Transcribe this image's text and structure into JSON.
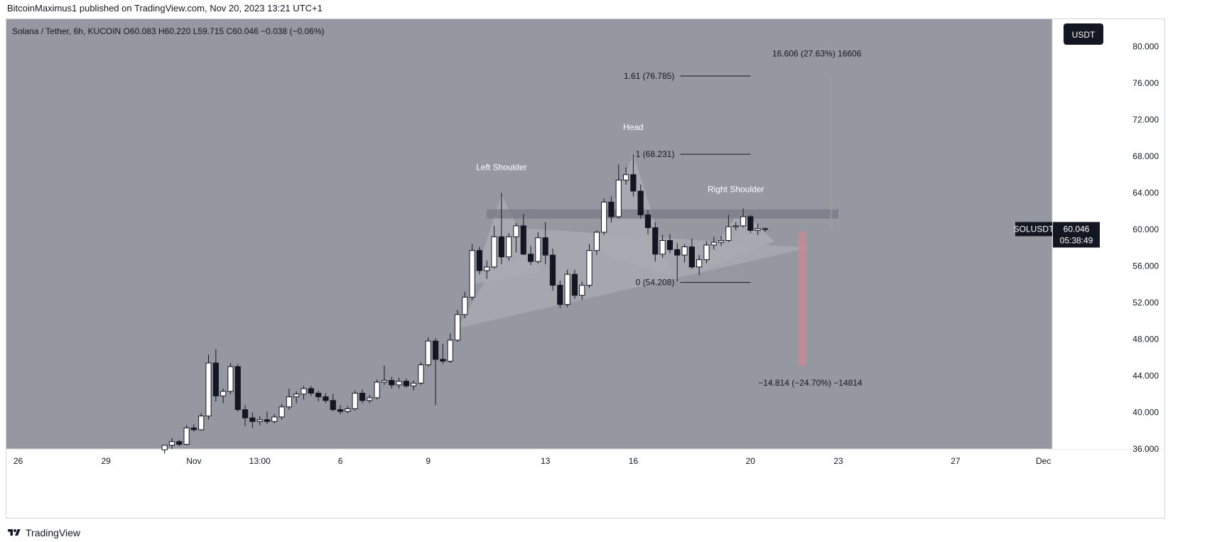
{
  "header": {
    "publisher": "BitcoinMaximus1 published on TradingView.com, Nov 20, 2023 13:21 UTC+1"
  },
  "footer": {
    "brand": "TradingView",
    "logo_icon": "tradingview-logo-icon"
  },
  "colors": {
    "plot_bg": "#9598a1",
    "up_candle": "#ffffff",
    "down_candle": "#131722",
    "wick": "#131722",
    "level_line": "#131722",
    "resistance_band": "#787b86",
    "pattern_fill": "#a9abb3",
    "target_down": "#c48a92",
    "target_up": "#9aa69a",
    "badge_bg": "#131722",
    "badge_text": "#ffffff"
  },
  "chart_data": {
    "type": "candlestick",
    "symbol_line": {
      "name": "Solana / Tether, 6h, KUCOIN",
      "open_label": "O",
      "open": "60.083",
      "high_label": "H",
      "high": "60.220",
      "low_label": "L",
      "low": "59.715",
      "close_label": "C",
      "close": "60.046",
      "change": "−0.038 (−0.06%)"
    },
    "currency_button": "USDT",
    "ylim": [
      36,
      83
    ],
    "y_ticks": [
      "80.000",
      "76.000",
      "72.000",
      "68.000",
      "64.000",
      "60.000",
      "56.000",
      "52.000",
      "48.000",
      "44.000",
      "40.000",
      "36.000"
    ],
    "x_ticks": [
      {
        "label": "26",
        "t": -3
      },
      {
        "label": "29",
        "t": 0
      },
      {
        "label": "Nov",
        "t": 3
      },
      {
        "label": "13:00",
        "t": 5.25
      },
      {
        "label": "6",
        "t": 8
      },
      {
        "label": "9",
        "t": 11
      },
      {
        "label": "13",
        "t": 15
      },
      {
        "label": "16",
        "t": 18
      },
      {
        "label": "20",
        "t": 22
      },
      {
        "label": "23",
        "t": 25
      },
      {
        "label": "27",
        "t": 29
      },
      {
        "label": "Dec",
        "t": 32
      }
    ],
    "x_unit": "days since Oct 29",
    "xlim": [
      -3.4,
      32.3
    ],
    "current_price": {
      "symbol": "SOLUSDT",
      "value": "60.046",
      "countdown": "05:38:49"
    },
    "candles": [
      {
        "t": 2.0,
        "o": 35.9,
        "h": 36.4,
        "l": 35.5,
        "c": 36.4
      },
      {
        "t": 2.25,
        "o": 36.4,
        "h": 37.2,
        "l": 36.0,
        "c": 36.8
      },
      {
        "t": 2.5,
        "o": 36.8,
        "h": 37.0,
        "l": 36.3,
        "c": 36.5
      },
      {
        "t": 2.75,
        "o": 36.5,
        "h": 38.6,
        "l": 36.4,
        "c": 38.3
      },
      {
        "t": 3.0,
        "o": 38.3,
        "h": 38.7,
        "l": 37.9,
        "c": 38.1
      },
      {
        "t": 3.25,
        "o": 38.1,
        "h": 39.9,
        "l": 38.0,
        "c": 39.6
      },
      {
        "t": 3.5,
        "o": 39.6,
        "h": 46.3,
        "l": 39.2,
        "c": 45.4
      },
      {
        "t": 3.75,
        "o": 45.4,
        "h": 46.9,
        "l": 41.2,
        "c": 41.8
      },
      {
        "t": 4.0,
        "o": 41.8,
        "h": 42.6,
        "l": 41.0,
        "c": 42.3
      },
      {
        "t": 4.25,
        "o": 42.3,
        "h": 45.4,
        "l": 42.0,
        "c": 45.0
      },
      {
        "t": 4.5,
        "o": 45.0,
        "h": 45.3,
        "l": 40.1,
        "c": 40.3
      },
      {
        "t": 4.75,
        "o": 40.3,
        "h": 40.8,
        "l": 38.5,
        "c": 39.4
      },
      {
        "t": 5.0,
        "o": 39.4,
        "h": 40.0,
        "l": 38.3,
        "c": 39.0
      },
      {
        "t": 5.25,
        "o": 39.0,
        "h": 39.6,
        "l": 38.6,
        "c": 39.2
      },
      {
        "t": 5.5,
        "o": 39.2,
        "h": 40.1,
        "l": 38.7,
        "c": 39.0
      },
      {
        "t": 5.75,
        "o": 39.0,
        "h": 39.8,
        "l": 38.8,
        "c": 39.5
      },
      {
        "t": 6.0,
        "o": 39.5,
        "h": 40.9,
        "l": 39.2,
        "c": 40.6
      },
      {
        "t": 6.25,
        "o": 40.6,
        "h": 42.6,
        "l": 40.3,
        "c": 41.7
      },
      {
        "t": 6.5,
        "o": 41.7,
        "h": 42.3,
        "l": 41.0,
        "c": 42.0
      },
      {
        "t": 6.75,
        "o": 42.0,
        "h": 42.9,
        "l": 41.4,
        "c": 42.6
      },
      {
        "t": 7.0,
        "o": 42.6,
        "h": 42.9,
        "l": 41.8,
        "c": 42.1
      },
      {
        "t": 7.25,
        "o": 42.1,
        "h": 42.4,
        "l": 41.2,
        "c": 41.7
      },
      {
        "t": 7.5,
        "o": 41.7,
        "h": 42.1,
        "l": 41.0,
        "c": 41.3
      },
      {
        "t": 7.75,
        "o": 41.3,
        "h": 42.0,
        "l": 40.1,
        "c": 40.3
      },
      {
        "t": 8.0,
        "o": 40.3,
        "h": 40.8,
        "l": 39.8,
        "c": 40.1
      },
      {
        "t": 8.25,
        "o": 40.1,
        "h": 40.7,
        "l": 39.9,
        "c": 40.4
      },
      {
        "t": 8.5,
        "o": 40.4,
        "h": 42.4,
        "l": 40.2,
        "c": 42.1
      },
      {
        "t": 8.75,
        "o": 42.1,
        "h": 42.5,
        "l": 41.0,
        "c": 41.3
      },
      {
        "t": 9.0,
        "o": 41.3,
        "h": 41.9,
        "l": 41.0,
        "c": 41.6
      },
      {
        "t": 9.25,
        "o": 41.6,
        "h": 43.6,
        "l": 41.4,
        "c": 43.3
      },
      {
        "t": 9.5,
        "o": 43.3,
        "h": 45.1,
        "l": 43.0,
        "c": 43.5
      },
      {
        "t": 9.75,
        "o": 43.5,
        "h": 43.9,
        "l": 42.6,
        "c": 43.0
      },
      {
        "t": 10.0,
        "o": 43.0,
        "h": 43.8,
        "l": 42.6,
        "c": 43.4
      },
      {
        "t": 10.25,
        "o": 43.4,
        "h": 43.7,
        "l": 42.7,
        "c": 42.9
      },
      {
        "t": 10.5,
        "o": 42.9,
        "h": 43.5,
        "l": 42.4,
        "c": 43.2
      },
      {
        "t": 10.75,
        "o": 43.2,
        "h": 45.5,
        "l": 43.0,
        "c": 45.2
      },
      {
        "t": 11.0,
        "o": 45.2,
        "h": 48.2,
        "l": 45.0,
        "c": 47.8
      },
      {
        "t": 11.25,
        "o": 47.8,
        "h": 48.1,
        "l": 40.8,
        "c": 45.8
      },
      {
        "t": 11.5,
        "o": 45.8,
        "h": 47.5,
        "l": 45.3,
        "c": 45.6
      },
      {
        "t": 11.75,
        "o": 45.6,
        "h": 48.6,
        "l": 45.4,
        "c": 47.9
      },
      {
        "t": 12.0,
        "o": 47.9,
        "h": 51.2,
        "l": 47.7,
        "c": 50.7
      },
      {
        "t": 12.25,
        "o": 50.7,
        "h": 53.2,
        "l": 50.3,
        "c": 52.6
      },
      {
        "t": 12.5,
        "o": 52.6,
        "h": 58.4,
        "l": 52.3,
        "c": 57.7
      },
      {
        "t": 12.75,
        "o": 57.7,
        "h": 58.1,
        "l": 55.1,
        "c": 55.5
      },
      {
        "t": 13.0,
        "o": 55.5,
        "h": 56.6,
        "l": 54.6,
        "c": 55.9
      },
      {
        "t": 13.25,
        "o": 55.9,
        "h": 60.4,
        "l": 55.7,
        "c": 59.2
      },
      {
        "t": 13.5,
        "o": 59.2,
        "h": 64.0,
        "l": 56.2,
        "c": 57.0
      },
      {
        "t": 13.75,
        "o": 57.0,
        "h": 59.6,
        "l": 56.6,
        "c": 59.2
      },
      {
        "t": 14.0,
        "o": 59.2,
        "h": 60.7,
        "l": 57.5,
        "c": 60.4
      },
      {
        "t": 14.25,
        "o": 60.4,
        "h": 61.7,
        "l": 57.2,
        "c": 57.3
      },
      {
        "t": 14.5,
        "o": 57.3,
        "h": 58.2,
        "l": 56.1,
        "c": 56.5
      },
      {
        "t": 14.75,
        "o": 56.5,
        "h": 59.7,
        "l": 56.3,
        "c": 59.1
      },
      {
        "t": 15.0,
        "o": 59.1,
        "h": 60.8,
        "l": 56.2,
        "c": 57.2
      },
      {
        "t": 15.25,
        "o": 57.2,
        "h": 57.9,
        "l": 53.3,
        "c": 53.9
      },
      {
        "t": 15.5,
        "o": 53.9,
        "h": 54.4,
        "l": 51.4,
        "c": 51.8
      },
      {
        "t": 15.75,
        "o": 51.8,
        "h": 55.6,
        "l": 51.5,
        "c": 55.1
      },
      {
        "t": 16.0,
        "o": 55.1,
        "h": 55.6,
        "l": 52.4,
        "c": 52.8
      },
      {
        "t": 16.25,
        "o": 52.8,
        "h": 54.3,
        "l": 52.3,
        "c": 53.9
      },
      {
        "t": 16.5,
        "o": 53.9,
        "h": 58.4,
        "l": 53.6,
        "c": 57.7
      },
      {
        "t": 16.75,
        "o": 57.7,
        "h": 59.9,
        "l": 57.2,
        "c": 59.7
      },
      {
        "t": 17.0,
        "o": 59.7,
        "h": 63.4,
        "l": 59.4,
        "c": 63.0
      },
      {
        "t": 17.25,
        "o": 63.0,
        "h": 63.6,
        "l": 60.8,
        "c": 61.4
      },
      {
        "t": 17.5,
        "o": 61.4,
        "h": 67.1,
        "l": 61.2,
        "c": 65.4
      },
      {
        "t": 17.75,
        "o": 65.4,
        "h": 66.8,
        "l": 64.9,
        "c": 66.0
      },
      {
        "t": 18.0,
        "o": 66.0,
        "h": 68.2,
        "l": 63.6,
        "c": 64.2
      },
      {
        "t": 18.25,
        "o": 64.2,
        "h": 64.9,
        "l": 61.2,
        "c": 61.6
      },
      {
        "t": 18.5,
        "o": 61.6,
        "h": 62.1,
        "l": 59.5,
        "c": 60.2
      },
      {
        "t": 18.75,
        "o": 60.2,
        "h": 60.8,
        "l": 56.5,
        "c": 57.3
      },
      {
        "t": 19.0,
        "o": 57.3,
        "h": 59.4,
        "l": 56.9,
        "c": 58.8
      },
      {
        "t": 19.25,
        "o": 58.8,
        "h": 59.5,
        "l": 57.4,
        "c": 57.8
      },
      {
        "t": 19.5,
        "o": 57.8,
        "h": 58.5,
        "l": 54.3,
        "c": 57.2
      },
      {
        "t": 19.75,
        "o": 57.2,
        "h": 58.4,
        "l": 56.4,
        "c": 58.1
      },
      {
        "t": 20.0,
        "o": 58.1,
        "h": 59.0,
        "l": 55.7,
        "c": 55.9
      },
      {
        "t": 20.25,
        "o": 55.9,
        "h": 57.2,
        "l": 55.0,
        "c": 56.7
      },
      {
        "t": 20.5,
        "o": 56.7,
        "h": 58.7,
        "l": 56.3,
        "c": 58.3
      },
      {
        "t": 20.75,
        "o": 58.3,
        "h": 59.2,
        "l": 57.8,
        "c": 58.6
      },
      {
        "t": 21.0,
        "o": 58.6,
        "h": 59.3,
        "l": 58.2,
        "c": 58.8
      },
      {
        "t": 21.25,
        "o": 58.8,
        "h": 61.6,
        "l": 58.6,
        "c": 60.3
      },
      {
        "t": 21.5,
        "o": 60.3,
        "h": 60.8,
        "l": 59.9,
        "c": 60.4
      },
      {
        "t": 21.75,
        "o": 60.4,
        "h": 62.3,
        "l": 60.2,
        "c": 61.4
      },
      {
        "t": 22.0,
        "o": 61.4,
        "h": 61.6,
        "l": 59.6,
        "c": 59.9
      },
      {
        "t": 22.25,
        "o": 59.9,
        "h": 60.6,
        "l": 59.4,
        "c": 60.1
      },
      {
        "t": 22.5,
        "o": 60.083,
        "h": 60.22,
        "l": 59.715,
        "c": 60.046
      }
    ],
    "annotations": {
      "pattern_labels": [
        {
          "text": "Left Shoulder",
          "t": 13.5,
          "y": 66.5
        },
        {
          "text": "Head",
          "t": 18.0,
          "y": 70.9
        },
        {
          "text": "Right Shoulder",
          "t": 21.5,
          "y": 64.1
        }
      ],
      "fib_levels": [
        {
          "label": "1.61 (76.785)",
          "value": 76.785
        },
        {
          "label": "1 (68.231)",
          "value": 68.231
        },
        {
          "label": "0 (54.208)",
          "value": 54.208
        }
      ],
      "resistance_zone": {
        "low": 61.2,
        "high": 62.2,
        "t_from": 13.0,
        "t_to": 25.0
      },
      "long_target": {
        "label": "16.606 (27.63%) 16606",
        "from": 60.0,
        "to": 76.6,
        "t": 24.75
      },
      "short_target": {
        "label": "−14.814 (−24.70%) −14814",
        "from": 59.8,
        "to": 45.1,
        "t": 23.75
      },
      "triangle": [
        [
          12.0,
          49.2
        ],
        [
          14.0,
          60.2
        ],
        [
          24.0,
          58.0
        ]
      ],
      "left_shoulder_shape": [
        [
          12.5,
          54.0
        ],
        [
          13.5,
          63.8
        ],
        [
          14.8,
          55.3
        ]
      ],
      "head_shape": [
        [
          16.6,
          57.5
        ],
        [
          18.0,
          68.2
        ],
        [
          19.3,
          55.0
        ]
      ],
      "right_shoulder_shape": [
        [
          20.0,
          55.0
        ],
        [
          21.7,
          62.2
        ],
        [
          22.8,
          58.7
        ]
      ]
    }
  }
}
